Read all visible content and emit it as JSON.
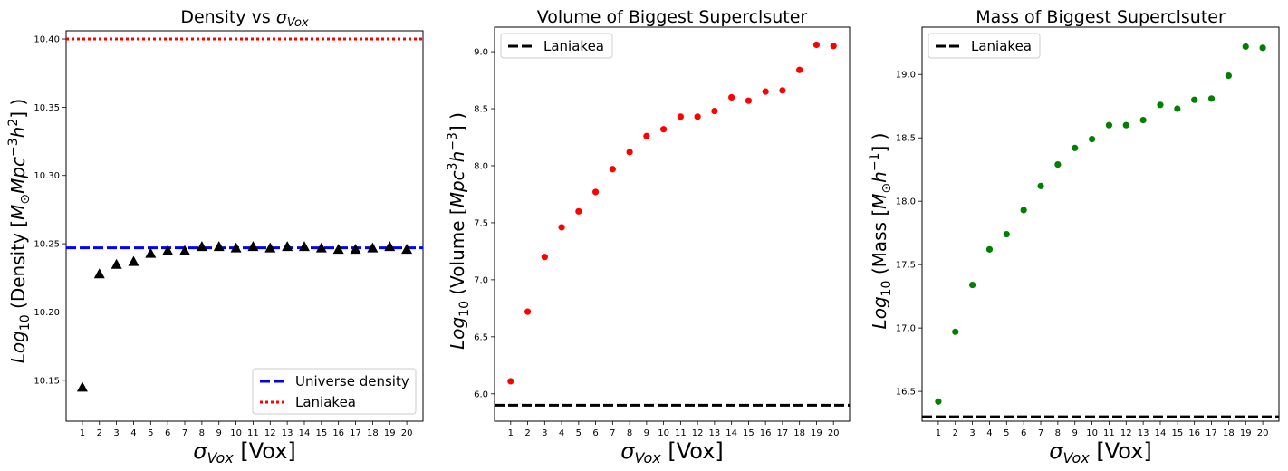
{
  "figure": {
    "panels": [
      {
        "title_main": "Density vs ",
        "title_sym": "σ",
        "title_sub": "Vox"
      },
      {
        "title_main": "Volume of Biggest Superclsuter",
        "title_sym": "",
        "title_sub": ""
      },
      {
        "title_main": "Mass of Biggest Superclsuter",
        "title_sym": "",
        "title_sub": ""
      }
    ]
  },
  "chart_data": [
    {
      "type": "scatter",
      "title": "Density vs σVox",
      "xlabel": "σVox [Vox]",
      "ylabel": "Log10 (Density [M⊙Mpc−3h2] )",
      "x": [
        1,
        2,
        3,
        4,
        5,
        6,
        7,
        8,
        9,
        10,
        11,
        12,
        13,
        14,
        15,
        16,
        17,
        18,
        19,
        20
      ],
      "xlim": [
        0.05,
        20.95
      ],
      "ylim": [
        10.12,
        10.406
      ],
      "y_ticks": [
        10.15,
        10.2,
        10.25,
        10.3,
        10.35,
        10.4
      ],
      "y_tick_decimals": 2,
      "grid": false,
      "legend_position": "lower-right",
      "series": [
        {
          "kind": "points",
          "marker": "triangle",
          "color": "#000000",
          "values": [
            10.145,
            10.228,
            10.235,
            10.237,
            10.243,
            10.245,
            10.245,
            10.248,
            10.248,
            10.247,
            10.248,
            10.247,
            10.248,
            10.248,
            10.247,
            10.246,
            10.246,
            10.247,
            10.248,
            10.246
          ]
        }
      ],
      "reference_lines": [
        {
          "name": "Universe density",
          "value": 10.247,
          "color": "#0000ff",
          "style": "dashed"
        },
        {
          "name": "Laniakea",
          "value": 10.4,
          "color": "#ff0000",
          "style": "dotted"
        }
      ]
    },
    {
      "type": "scatter",
      "title": "Volume of Biggest Superclsuter",
      "xlabel": "σVox [Vox]",
      "ylabel": "Log10 (Volume [Mpc3h−3] )",
      "x": [
        1,
        2,
        3,
        4,
        5,
        6,
        7,
        8,
        9,
        10,
        11,
        12,
        13,
        14,
        15,
        16,
        17,
        18,
        19,
        20
      ],
      "xlim": [
        0.05,
        20.95
      ],
      "ylim": [
        5.76,
        9.215
      ],
      "y_ticks": [
        6.0,
        6.5,
        7.0,
        7.5,
        8.0,
        8.5,
        9.0
      ],
      "y_tick_decimals": 1,
      "grid": false,
      "legend_position": "top-left",
      "series": [
        {
          "kind": "points",
          "marker": "circle",
          "color": "#ff0000",
          "values": [
            6.11,
            6.72,
            7.2,
            7.46,
            7.6,
            7.77,
            7.97,
            8.12,
            8.26,
            8.32,
            8.43,
            8.43,
            8.48,
            8.6,
            8.57,
            8.65,
            8.66,
            8.84,
            9.06,
            9.05
          ]
        }
      ],
      "reference_lines": [
        {
          "name": "Laniakea",
          "value": 5.9,
          "color": "#000000",
          "style": "dashed"
        }
      ]
    },
    {
      "type": "scatter",
      "title": "Mass of Biggest Superclsuter",
      "xlabel": "σVox [Vox]",
      "ylabel": "Log10 (Mass [M⊙h−1] )",
      "x": [
        1,
        2,
        3,
        4,
        5,
        6,
        7,
        8,
        9,
        10,
        11,
        12,
        13,
        14,
        15,
        16,
        17,
        18,
        19,
        20
      ],
      "xlim": [
        0.05,
        20.95
      ],
      "ylim": [
        16.265,
        19.373
      ],
      "y_ticks": [
        16.5,
        17.0,
        17.5,
        18.0,
        18.5,
        19.0
      ],
      "y_tick_decimals": 1,
      "grid": false,
      "legend_position": "top-left",
      "series": [
        {
          "kind": "points",
          "marker": "circle",
          "color": "#008000",
          "values": [
            16.42,
            16.97,
            17.34,
            17.62,
            17.74,
            17.93,
            18.12,
            18.29,
            18.42,
            18.49,
            18.6,
            18.6,
            18.64,
            18.76,
            18.73,
            18.8,
            18.81,
            18.99,
            19.22,
            19.21
          ]
        }
      ],
      "reference_lines": [
        {
          "name": "Laniakea",
          "value": 16.3,
          "color": "#000000",
          "style": "dashed"
        }
      ]
    }
  ]
}
